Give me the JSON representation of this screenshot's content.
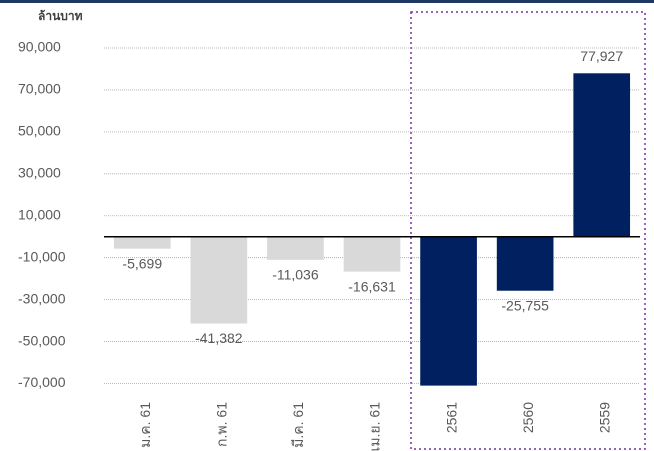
{
  "chart_data": {
    "type": "bar",
    "unit_label": "ล้านบาท",
    "categories": [
      "ม.ค. 61",
      "ก.พ. 61",
      "มี.ค. 61",
      "เม.ย. 61",
      "2561",
      "2560",
      "2559"
    ],
    "values": [
      -5699,
      -41382,
      -11036,
      -16631,
      -71000,
      -25755,
      77927
    ],
    "value_labels": [
      "-5,699",
      "-41,382",
      "-11,036",
      "-16,631",
      null,
      "-25,755",
      "77,927"
    ],
    "colors": [
      "#d9d9d9",
      "#d9d9d9",
      "#d9d9d9",
      "#d9d9d9",
      "#002060",
      "#002060",
      "#002060"
    ],
    "ylim": [
      -75000,
      100000
    ],
    "yticks": [
      {
        "value": 90000,
        "label": "90,000"
      },
      {
        "value": 70000,
        "label": "70,000"
      },
      {
        "value": 50000,
        "label": "50,000"
      },
      {
        "value": 30000,
        "label": "30,000"
      },
      {
        "value": 10000,
        "label": "10,000"
      },
      {
        "value": -10000,
        "label": "-10,000"
      },
      {
        "value": -30000,
        "label": "-30,000"
      },
      {
        "value": -50000,
        "label": "-50,000"
      },
      {
        "value": -70000,
        "label": "-70,000"
      }
    ],
    "grid": true
  }
}
